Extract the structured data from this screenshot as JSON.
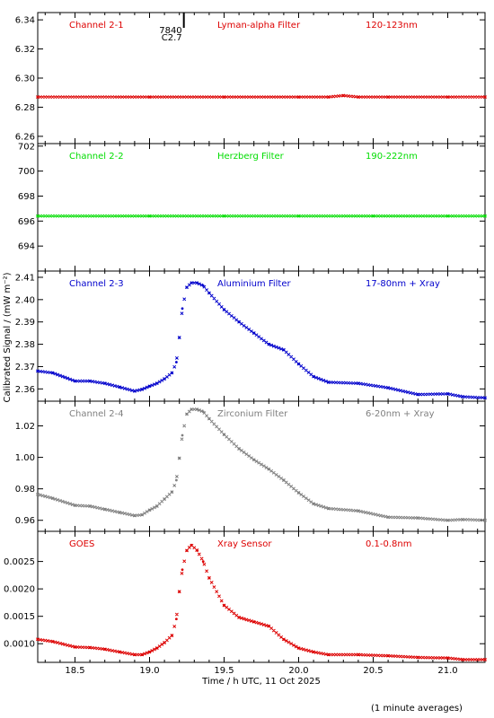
{
  "figure": {
    "ylabel": "Calibrated Signal / (mW m⁻²)",
    "xlabel": "Time / h UTC, 11 Oct 2025",
    "footnote": "(1 minute averages)",
    "flare_marker": {
      "line1": "7840",
      "line2": "C2.7",
      "time": 19.23
    }
  },
  "chart_data": [
    {
      "type": "scatter",
      "channel": "Channel 2-1",
      "filter": "Lyman-alpha Filter",
      "band": "120-123nm",
      "color": "#dd0000",
      "ylim": [
        6.255,
        6.345
      ],
      "yticks": [
        "6.26",
        "6.28",
        "6.30",
        "6.32",
        "6.34"
      ],
      "ytick_values": [
        6.26,
        6.28,
        6.3,
        6.32,
        6.34
      ],
      "xlim": [
        18.25,
        21.25
      ],
      "x": [
        18.25,
        19.0,
        19.5,
        20.0,
        20.2,
        20.3,
        20.4,
        20.6,
        21.0,
        21.25
      ],
      "y": [
        6.287,
        6.287,
        6.287,
        6.287,
        6.287,
        6.288,
        6.287,
        6.287,
        6.287,
        6.287
      ]
    },
    {
      "type": "scatter",
      "channel": "Channel 2-2",
      "filter": "Herzberg Filter",
      "band": "190-222nm",
      "color": "#00dd00",
      "ylim": [
        692.0,
        702.2
      ],
      "yticks": [
        "694",
        "696",
        "698",
        "700",
        "702"
      ],
      "ytick_values": [
        694,
        696,
        698,
        700,
        702
      ],
      "xlim": [
        18.25,
        21.25
      ],
      "x": [
        18.25,
        19.0,
        19.5,
        20.0,
        20.5,
        21.0,
        21.25
      ],
      "y": [
        696.4,
        696.4,
        696.4,
        696.4,
        696.4,
        696.4,
        696.4
      ]
    },
    {
      "type": "scatter",
      "channel": "Channel 2-3",
      "filter": "Aluminium Filter",
      "band": "17-80nm + Xray",
      "color": "#0000cc",
      "ylim": [
        2.3545,
        2.4128
      ],
      "yticks": [
        "2.36",
        "2.37",
        "2.38",
        "2.39",
        "2.40",
        "2.41"
      ],
      "ytick_values": [
        2.36,
        2.37,
        2.38,
        2.39,
        2.4,
        2.41
      ],
      "xlim": [
        18.25,
        21.25
      ],
      "x": [
        18.25,
        18.35,
        18.5,
        18.6,
        18.7,
        18.8,
        18.9,
        18.95,
        19.0,
        19.05,
        19.1,
        19.15,
        19.18,
        19.2,
        19.22,
        19.25,
        19.28,
        19.32,
        19.36,
        19.4,
        19.5,
        19.6,
        19.7,
        19.8,
        19.9,
        20.0,
        20.1,
        20.2,
        20.4,
        20.6,
        20.8,
        21.0,
        21.1,
        21.25
      ],
      "y": [
        2.368,
        2.3672,
        2.3635,
        2.3635,
        2.3625,
        2.3608,
        2.359,
        2.3598,
        2.3612,
        2.3625,
        2.3645,
        2.3672,
        2.372,
        2.383,
        2.396,
        2.4055,
        2.4075,
        2.4075,
        2.4062,
        2.403,
        2.3955,
        2.39,
        2.385,
        2.38,
        2.3775,
        2.3712,
        2.3655,
        2.363,
        2.3625,
        2.3605,
        2.3575,
        2.3578,
        2.3565,
        2.356
      ]
    },
    {
      "type": "scatter",
      "channel": "Channel 2-4",
      "filter": "Zirconium Filter",
      "band": "6-20nm + Xray",
      "color": "#808080",
      "ylim": [
        0.953,
        1.0357
      ],
      "yticks": [
        "0.96",
        "0.98",
        "1.00",
        "1.02"
      ],
      "ytick_values": [
        0.96,
        0.98,
        1.0,
        1.02
      ],
      "xlim": [
        18.25,
        21.25
      ],
      "x": [
        18.25,
        18.35,
        18.5,
        18.6,
        18.7,
        18.8,
        18.9,
        18.95,
        19.0,
        19.05,
        19.1,
        19.15,
        19.18,
        19.2,
        19.22,
        19.25,
        19.28,
        19.32,
        19.36,
        19.4,
        19.5,
        19.6,
        19.7,
        19.8,
        19.9,
        20.0,
        20.1,
        20.2,
        20.4,
        20.6,
        20.8,
        21.0,
        21.1,
        21.25
      ],
      "y": [
        0.9765,
        0.974,
        0.9695,
        0.969,
        0.967,
        0.965,
        0.963,
        0.9635,
        0.9665,
        0.969,
        0.9735,
        0.978,
        0.9855,
        0.9995,
        1.014,
        1.0275,
        1.0305,
        1.0305,
        1.029,
        1.0245,
        1.0145,
        1.0055,
        0.9985,
        0.9925,
        0.9855,
        0.9775,
        0.9705,
        0.9675,
        0.966,
        0.962,
        0.9615,
        0.96,
        0.9605,
        0.96
      ]
    },
    {
      "type": "scatter",
      "channel": "GOES",
      "filter": "Xray Sensor",
      "band": "0.1-0.8nm",
      "color": "#dd0000",
      "ylim": [
        0.00066,
        0.00305
      ],
      "yticks": [
        "0.0010",
        "0.0015",
        "0.0020",
        "0.0025"
      ],
      "ytick_values": [
        0.001,
        0.0015,
        0.002,
        0.0025
      ],
      "xlim": [
        18.25,
        21.25
      ],
      "x": [
        18.25,
        18.35,
        18.5,
        18.6,
        18.7,
        18.8,
        18.9,
        18.95,
        19.0,
        19.05,
        19.1,
        19.15,
        19.18,
        19.2,
        19.22,
        19.25,
        19.28,
        19.32,
        19.36,
        19.4,
        19.5,
        19.6,
        19.7,
        19.8,
        19.9,
        20.0,
        20.1,
        20.2,
        20.4,
        20.6,
        20.8,
        21.0,
        21.1,
        21.25
      ],
      "y": [
        0.00108,
        0.00104,
        0.00094,
        0.00093,
        0.0009,
        0.00085,
        0.0008,
        0.0008,
        0.00085,
        0.00092,
        0.00102,
        0.00115,
        0.00145,
        0.00195,
        0.00235,
        0.0027,
        0.0028,
        0.0027,
        0.0025,
        0.0022,
        0.0017,
        0.00148,
        0.0014,
        0.00132,
        0.00108,
        0.00092,
        0.00085,
        0.0008,
        0.0008,
        0.00078,
        0.00075,
        0.00074,
        0.00071,
        0.00071
      ]
    }
  ],
  "xaxis": {
    "xlim": [
      18.25,
      21.25
    ],
    "major_ticks": [
      18.5,
      19.0,
      19.5,
      20.0,
      20.5,
      21.0
    ],
    "major_labels": [
      "18.5",
      "19.0",
      "19.5",
      "20.0",
      "20.5",
      "21.0"
    ]
  }
}
